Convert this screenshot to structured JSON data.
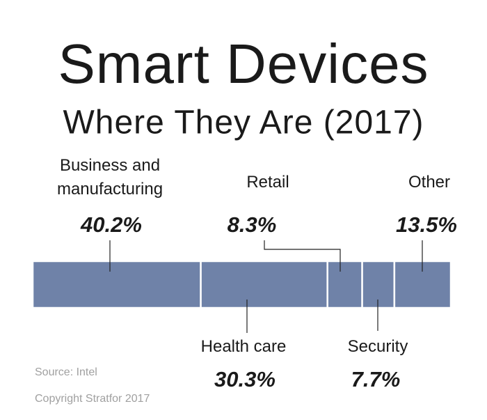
{
  "chart_data": {
    "type": "stacked-bar",
    "title": "Smart Devices",
    "subtitle": "Where They Are (2017)",
    "categories": [
      "Business and manufacturing",
      "Health care",
      "Retail",
      "Security",
      "Other"
    ],
    "values": [
      40.2,
      30.3,
      8.3,
      7.7,
      13.5
    ],
    "value_labels": [
      "40.2%",
      "30.3%",
      "8.3%",
      "7.7%",
      "13.5%"
    ],
    "color": "#6f82a8",
    "source": "Source: Intel",
    "copyright": "Copyright Stratfor 2017"
  }
}
